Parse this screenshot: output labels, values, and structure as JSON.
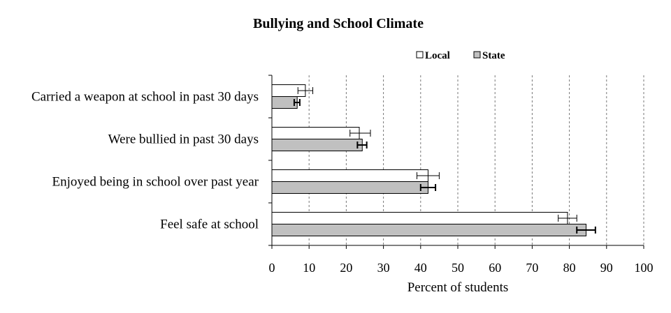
{
  "chart_data": {
    "type": "bar",
    "orientation": "horizontal",
    "title": "Bullying and School Climate",
    "xlabel": "Percent of students",
    "ylabel": "",
    "xlim": [
      0,
      100
    ],
    "x_ticks": [
      "0",
      "10",
      "20",
      "30",
      "40",
      "50",
      "60",
      "70",
      "80",
      "90",
      "100"
    ],
    "grid": "vertical dashed",
    "legend_position": "top-right",
    "categories": [
      "Carried a weapon at school in past 30 days",
      "Were bullied in past 30 days",
      "Enjoyed being in school over past year",
      "Feel safe at school"
    ],
    "series": [
      {
        "name": "Local",
        "color": "#ffffff",
        "values": [
          9.0,
          23.5,
          42.0,
          79.5
        ],
        "error": [
          [
            7.0,
            11.0
          ],
          [
            21.0,
            26.5
          ],
          [
            39.0,
            45.0
          ],
          [
            77.0,
            82.0
          ]
        ]
      },
      {
        "name": "State",
        "color": "#c0c0c0",
        "values": [
          6.8,
          24.3,
          42.0,
          84.5
        ],
        "error": [
          [
            6.0,
            7.5
          ],
          [
            23.0,
            25.5
          ],
          [
            40.0,
            44.0
          ],
          [
            82.0,
            87.0
          ]
        ]
      }
    ]
  }
}
